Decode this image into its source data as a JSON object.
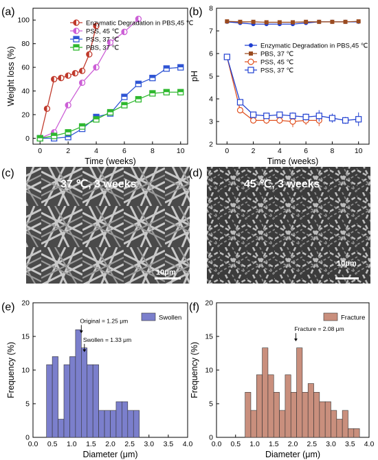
{
  "panel_labels": {
    "a": "(a)",
    "b": "(b)",
    "c": "(c)",
    "d": "(d)",
    "e": "(e)",
    "f": "(f)"
  },
  "sem": {
    "c": {
      "label": "37 ℃,  3 weeks",
      "scale": "10μm"
    },
    "d": {
      "label": "45 ℃,  3 weeks",
      "scale": "10μm"
    }
  },
  "chart_data": [
    {
      "panel": "a",
      "type": "line",
      "xlabel": "Time (weeks)",
      "ylabel": "Weight loss (%)",
      "xlim": [
        -0.5,
        10.5
      ],
      "ylim": [
        -5,
        110
      ],
      "xticks": [
        0,
        2,
        4,
        6,
        8,
        10
      ],
      "yticks": [
        0,
        20,
        40,
        60,
        80,
        100
      ],
      "legend_position": "top-left",
      "series": [
        {
          "name": "Enzymatic Degradation in PBS,45 ℃",
          "color": "#c0392b",
          "marker": "half-circle",
          "x": [
            0,
            0.5,
            1,
            1.5,
            2,
            2.5,
            3,
            3.5,
            4
          ],
          "y": [
            0,
            25,
            50,
            51,
            53,
            55,
            57,
            71,
            95
          ]
        },
        {
          "name": "PSS, 45 ℃",
          "color": "#cc5fd6",
          "marker": "half-circle",
          "x": [
            0,
            1,
            2,
            3,
            4,
            5,
            6,
            7
          ],
          "y": [
            0,
            5,
            28,
            47,
            60,
            81,
            90,
            101
          ]
        },
        {
          "name": "PSS, 37 ℃",
          "color": "#2f55d4",
          "marker": "half-square",
          "x": [
            0,
            1,
            2,
            3,
            4,
            5,
            6,
            7,
            8,
            9,
            10
          ],
          "y": [
            0,
            0,
            1,
            8,
            18,
            21,
            35,
            46,
            51,
            59,
            60
          ]
        },
        {
          "name": "PBS, 37 ℃",
          "color": "#2fb82f",
          "marker": "half-square",
          "x": [
            0,
            1,
            2,
            3,
            4,
            5,
            6,
            7,
            8,
            9,
            10
          ],
          "y": [
            0,
            2,
            5,
            10,
            16,
            22,
            28,
            33,
            38,
            39,
            39
          ]
        }
      ]
    },
    {
      "panel": "b",
      "type": "line",
      "xlabel": "Time (weeks)",
      "ylabel": "pH",
      "xlim": [
        -0.8,
        10.8
      ],
      "ylim": [
        2,
        8
      ],
      "xticks": [
        0,
        2,
        4,
        6,
        8,
        10
      ],
      "yticks": [
        2,
        3,
        4,
        5,
        6,
        7,
        8
      ],
      "legend_position": "middle-right",
      "series": [
        {
          "name": "Enzymatic Degradation in PBS,45 ℃",
          "color": "#1f3fd1",
          "marker": "filled-circle",
          "x": [
            0,
            1,
            2,
            3,
            4,
            5,
            6,
            7,
            8,
            9,
            10
          ],
          "y": [
            7.4,
            7.35,
            7.3,
            7.3,
            7.3,
            7.3,
            7.35,
            7.4,
            7.4,
            7.4,
            7.4
          ]
        },
        {
          "name": "PBS, 37 ℃",
          "color": "#9a4a1f",
          "marker": "filled-square",
          "x": [
            0,
            1,
            2,
            3,
            4,
            5,
            6,
            7,
            8,
            9,
            10
          ],
          "y": [
            7.42,
            7.4,
            7.4,
            7.38,
            7.38,
            7.38,
            7.4,
            7.4,
            7.4,
            7.4,
            7.42
          ]
        },
        {
          "name": "PSS, 45 ℃",
          "color": "#e0501f",
          "marker": "open-circle",
          "x": [
            0,
            1,
            2,
            3,
            4,
            5,
            6,
            7
          ],
          "y": [
            5.85,
            3.5,
            3.05,
            3.05,
            3.05,
            3.0,
            3.05,
            3.05
          ],
          "err": [
            0.05,
            0.1,
            0.1,
            0.15,
            0.15,
            0.25,
            0.2,
            0.25
          ]
        },
        {
          "name": "PSS, 37 ℃",
          "color": "#1f3fd1",
          "marker": "open-square",
          "x": [
            0,
            1,
            2,
            3,
            4,
            5,
            6,
            7,
            8,
            9,
            10
          ],
          "y": [
            5.85,
            3.85,
            3.3,
            3.25,
            3.3,
            3.25,
            3.2,
            3.25,
            3.15,
            3.05,
            3.1
          ],
          "err": [
            0.05,
            0.1,
            0.1,
            0.1,
            0.1,
            0.15,
            0.15,
            0.25,
            0.2,
            0.15,
            0.3
          ]
        }
      ]
    },
    {
      "panel": "e",
      "type": "bar",
      "xlabel": "Diameter (μm)",
      "ylabel": "Frequency (%)",
      "xlim": [
        0,
        4.0
      ],
      "ylim": [
        0,
        20
      ],
      "xticks": [
        0.0,
        0.5,
        1.0,
        1.5,
        2.0,
        2.5,
        3.0,
        3.5,
        4.0
      ],
      "yticks": [
        0,
        5,
        10,
        15,
        20
      ],
      "legend": "Swollen",
      "color": "#7b7fcc",
      "bin_width": 0.15,
      "bin_starts": [
        0.35,
        0.5,
        0.65,
        0.8,
        0.95,
        1.1,
        1.25,
        1.4,
        1.55,
        1.7,
        1.85,
        2.0,
        2.15,
        2.3,
        2.45,
        2.6,
        2.75
      ],
      "values": [
        10.8,
        12.0,
        2.7,
        10.8,
        12.0,
        16.0,
        13.3,
        10.8,
        10.8,
        4.0,
        4.0,
        4.0,
        5.3,
        5.3,
        4.0,
        4.0,
        0
      ],
      "annotations": [
        {
          "text": "Original = 1.25 μm",
          "x": 1.25,
          "y": 17.0,
          "arrow": true
        },
        {
          "text": "Swollen = 1.33 μm",
          "x": 1.33,
          "y": 14.2,
          "arrow": true
        }
      ]
    },
    {
      "panel": "f",
      "type": "bar",
      "xlabel": "Diameter (μm)",
      "ylabel": "Frequency (%)",
      "xlim": [
        0,
        4.0
      ],
      "ylim": [
        0,
        20
      ],
      "xticks": [
        0.0,
        0.5,
        1.0,
        1.5,
        2.0,
        2.5,
        3.0,
        3.5,
        4.0
      ],
      "yticks": [
        0,
        5,
        10,
        15,
        20
      ],
      "legend": "Fracture",
      "color": "#c98f7d",
      "bin_width": 0.15,
      "bin_starts": [
        0.75,
        0.9,
        1.05,
        1.2,
        1.35,
        1.5,
        1.65,
        1.8,
        1.95,
        2.1,
        2.25,
        2.4,
        2.55,
        2.7,
        2.85,
        3.0,
        3.15,
        3.3,
        3.45,
        3.6,
        3.75
      ],
      "values": [
        6.7,
        4.0,
        9.3,
        13.3,
        9.3,
        6.7,
        4.0,
        9.3,
        6.7,
        13.3,
        6.7,
        8.0,
        6.7,
        5.3,
        5.3,
        4.0,
        2.7,
        4.0,
        1.3,
        1.3,
        0
      ],
      "annotations": [
        {
          "text": "Fracture = 2.08 μm",
          "x": 2.08,
          "y": 15.8,
          "arrow": true
        }
      ]
    }
  ]
}
